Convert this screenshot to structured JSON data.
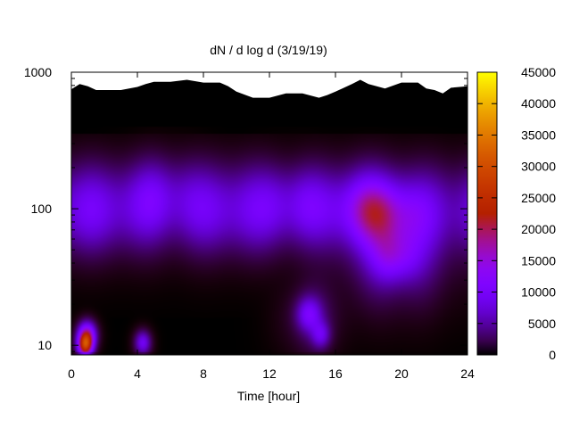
{
  "chart_data": {
    "type": "heatmap",
    "title": "dN / d log d (3/19/19)",
    "xlabel": "Time [hour]",
    "ylabel": "",
    "x_range": [
      0,
      24
    ],
    "y_range": [
      8.5,
      1000
    ],
    "y_scale": "log",
    "x_ticks": [
      "0",
      "4",
      "8",
      "12",
      "16",
      "20",
      "24"
    ],
    "y_ticks": [
      "10",
      "100",
      "1000"
    ],
    "colorbar": {
      "palette": "black-purple-red-orange-yellow",
      "range": [
        0,
        45000
      ],
      "ticks": [
        "0",
        "5000",
        "10000",
        "15000",
        "20000",
        "25000",
        "30000",
        "35000",
        "40000",
        "45000"
      ]
    },
    "ceiling_profile": {
      "hours": [
        0,
        0.5,
        1,
        1.5,
        2,
        3,
        4,
        4.5,
        5,
        6,
        7,
        8,
        9,
        9.5,
        10,
        11,
        12,
        13,
        14,
        15,
        15.5,
        16,
        17,
        17.5,
        18,
        19,
        20,
        21,
        21.5,
        22,
        22.5,
        23,
        24
      ],
      "diameter": [
        750,
        820,
        790,
        740,
        740,
        740,
        780,
        820,
        850,
        850,
        880,
        840,
        840,
        790,
        720,
        650,
        650,
        700,
        700,
        650,
        680,
        720,
        820,
        880,
        820,
        760,
        840,
        840,
        760,
        740,
        700,
        770,
        790
      ]
    },
    "concentration_features": [
      {
        "hour": 0.8,
        "diameter": 10,
        "value": 40000
      },
      {
        "hour": 0.9,
        "diameter": 12,
        "value": 28000
      },
      {
        "hour": 4.3,
        "diameter": 10.5,
        "value": 19000
      },
      {
        "hour": 14.3,
        "diameter": 17,
        "value": 17000
      },
      {
        "hour": 15.1,
        "diameter": 12,
        "value": 14000
      },
      {
        "hour": 19.7,
        "diameter": 45,
        "value": 17500
      },
      {
        "hour": 19.6,
        "diameter": 90,
        "value": 15000
      },
      {
        "hour": 5.5,
        "diameter": 130,
        "value": 10500
      },
      {
        "hour": 13.5,
        "diameter": 110,
        "value": 10000
      },
      {
        "hour": 17.5,
        "diameter": 100,
        "value": 11000
      }
    ]
  }
}
